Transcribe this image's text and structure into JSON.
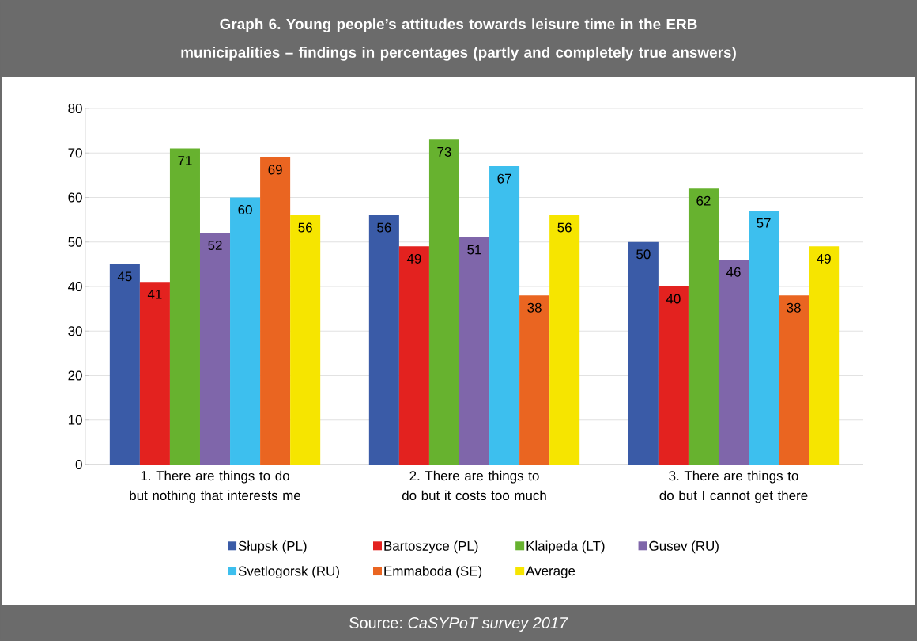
{
  "chart_data": {
    "type": "bar",
    "title": "Graph 6. Young people’s attitudes towards leisure time in the ERB municipalities – findings in percentages (partly and completely true answers)",
    "categories": [
      "1. There are things to do but nothing that interests me",
      "2. There are things to do but it costs too much",
      "3. There are things to do but I cannot get there"
    ],
    "series": [
      {
        "name": "Słupsk (PL)",
        "color": "#3a5ba7",
        "values": [
          45,
          56,
          50
        ]
      },
      {
        "name": "Bartoszyce (PL)",
        "color": "#e3221f",
        "values": [
          41,
          49,
          40
        ]
      },
      {
        "name": "Klaipeda (LT)",
        "color": "#67b22f",
        "values": [
          71,
          73,
          62
        ]
      },
      {
        "name": "Gusev (RU)",
        "color": "#7f66aa",
        "values": [
          52,
          51,
          46
        ]
      },
      {
        "name": "Svetlogorsk (RU)",
        "color": "#3dbfee",
        "values": [
          60,
          67,
          57
        ]
      },
      {
        "name": "Emmaboda (SE)",
        "color": "#ea6521",
        "values": [
          69,
          38,
          38
        ]
      },
      {
        "name": "Average",
        "color": "#f6e500",
        "values": [
          56,
          56,
          49
        ]
      }
    ],
    "ylim": [
      0,
      80
    ],
    "yticks": [
      0,
      10,
      20,
      30,
      40,
      50,
      60,
      70,
      80
    ],
    "grid": "y",
    "legend": "bottom",
    "data_labels": true,
    "annotations": [
      "Source: *CaSYPoT survey 2017*"
    ]
  }
}
